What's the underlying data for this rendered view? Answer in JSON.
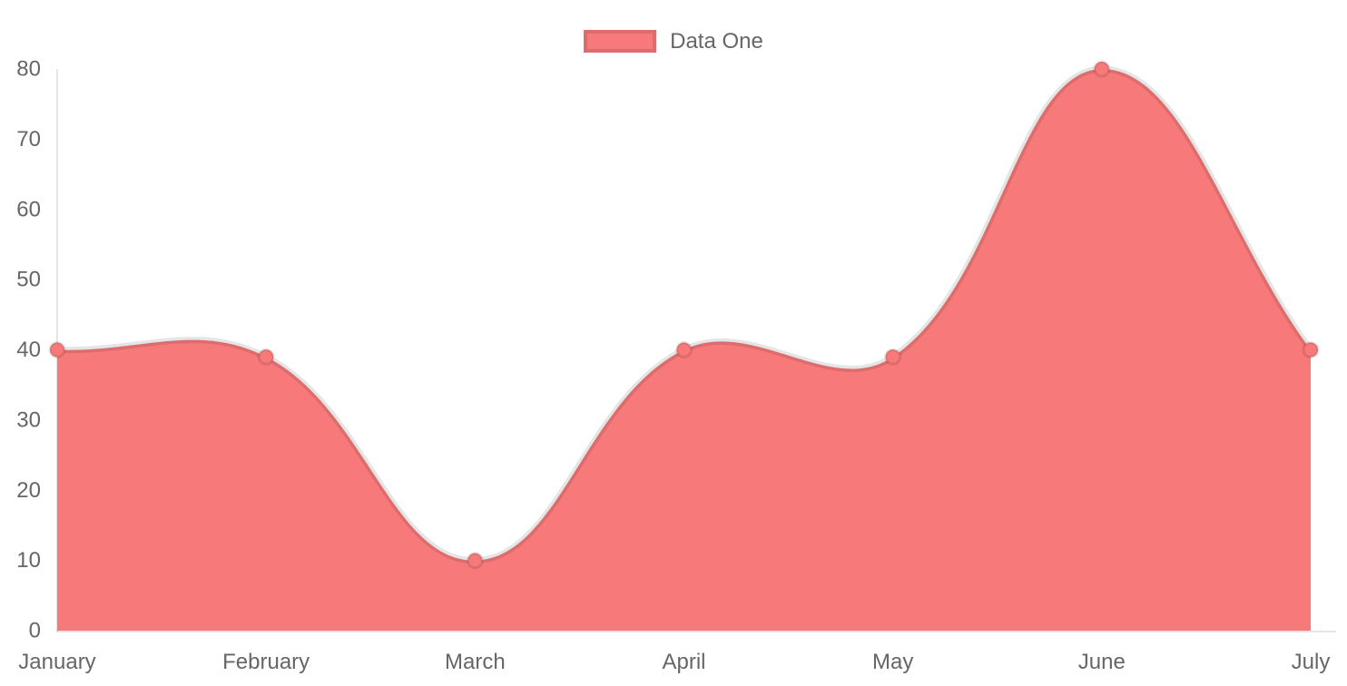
{
  "chart_data": {
    "type": "area",
    "title": "",
    "categories": [
      "January",
      "February",
      "March",
      "April",
      "May",
      "June",
      "July"
    ],
    "series": [
      {
        "name": "Data One",
        "values": [
          40,
          39,
          10,
          40,
          39,
          80,
          40
        ]
      }
    ],
    "ylim": [
      0,
      80
    ],
    "yticks": [
      0,
      10,
      20,
      30,
      40,
      50,
      60,
      70,
      80
    ],
    "ytick_step": 10,
    "grid": false,
    "legend_position": "top",
    "line_tension": 0.4,
    "colors": {
      "fill": "#f87979",
      "line": "rgba(0,0,0,0.1)",
      "point_fill": "#f87979",
      "point_border": "rgba(0,0,0,0.1)",
      "axis_line": "rgba(0,0,0,0.1)",
      "tick_text": "#666666",
      "background": "#ffffff"
    }
  },
  "legend": {
    "items": [
      {
        "label": "Data One",
        "swatch_color": "#f87979"
      }
    ]
  }
}
